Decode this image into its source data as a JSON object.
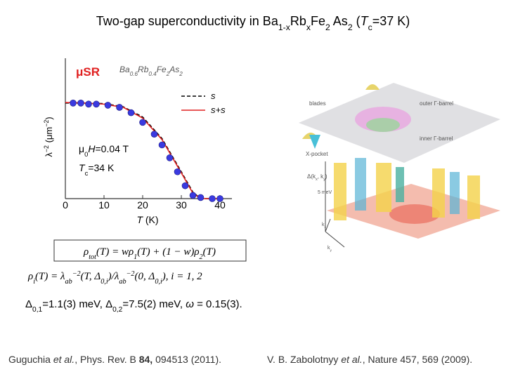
{
  "title": {
    "parts": [
      "Two-gap superconductivity in Ba",
      "1-x",
      "Rb",
      "x",
      "Fe",
      "2",
      " As",
      "2",
      " (",
      "T",
      "c",
      "=37 K)"
    ]
  },
  "chart_data": {
    "type": "scatter",
    "label": "μSR",
    "sample": [
      "Ba",
      "0.6",
      "Rb",
      "0.4",
      "Fe",
      "2",
      "As",
      "2"
    ],
    "field": [
      "μ",
      "0",
      "H",
      "=0.04 T"
    ],
    "tc_label": [
      "T",
      "c",
      "=34 K"
    ],
    "x_label": [
      "T",
      " (K)"
    ],
    "y_label": [
      "λ",
      "−2",
      " (μm",
      "−2",
      ")"
    ],
    "xlim": [
      0,
      43
    ],
    "xticks": [
      0,
      10,
      20,
      30,
      40
    ],
    "ylim": [
      0,
      1
    ],
    "color": "#3a3ae0",
    "x": [
      2,
      4,
      6,
      8,
      11,
      14,
      17,
      20,
      23,
      25,
      27,
      29,
      31,
      33,
      35,
      38,
      40
    ],
    "values": [
      0.89,
      0.89,
      0.88,
      0.88,
      0.87,
      0.85,
      0.8,
      0.71,
      0.6,
      0.5,
      0.38,
      0.25,
      0.12,
      0.03,
      0.01,
      0,
      0
    ],
    "series": [
      {
        "name": "s",
        "color": "#000000",
        "x": [
          0,
          5,
          10,
          15,
          20,
          25,
          30,
          33,
          35,
          40
        ],
        "values": [
          0.89,
          0.89,
          0.885,
          0.855,
          0.76,
          0.56,
          0.25,
          0.06,
          0,
          0
        ]
      },
      {
        "name": "s+s",
        "color": "#e02020",
        "x": [
          0,
          5,
          10,
          15,
          20,
          25,
          30,
          33,
          35,
          40
        ],
        "values": [
          0.895,
          0.89,
          0.88,
          0.85,
          0.75,
          0.55,
          0.24,
          0.05,
          0,
          0
        ]
      }
    ]
  },
  "diagram": {
    "blades": "blades",
    "outer": "outer Γ-barrel",
    "inner": "inner Γ-barrel",
    "xpocket": "X-pocket",
    "delta": [
      "Δ(k",
      "x",
      ", k",
      "y",
      ")"
    ],
    "scale": "5 meV",
    "kx": [
      "k",
      "x"
    ],
    "ky": [
      "k",
      "y"
    ]
  },
  "equations": {
    "total": [
      "ρ",
      "tot",
      "(T) = wρ",
      "1",
      "(T) + (1 − w)ρ",
      "2",
      "(T)"
    ],
    "ratio": [
      "ρ",
      "i",
      "(T) = λ",
      "ab",
      "−2",
      "(T, Δ",
      "0,i",
      ")/λ",
      "ab",
      "−2",
      "(0, Δ",
      "0,i",
      "),   i = 1, 2"
    ]
  },
  "parameters": [
    "Δ",
    "0,1",
    "=1.1(3) meV,  Δ",
    "0,2",
    "=7.5(2) meV,  ",
    "ω",
    " = 0.15(3)."
  ],
  "references": {
    "left": [
      "Guguchia ",
      "et al.",
      ", Phys. Rev. B ",
      "84,",
      " 094513 (2011)."
    ],
    "right": [
      "V. B. Zabolotnyy ",
      "et al.",
      ", Nature 457, 569 (2009)."
    ]
  }
}
